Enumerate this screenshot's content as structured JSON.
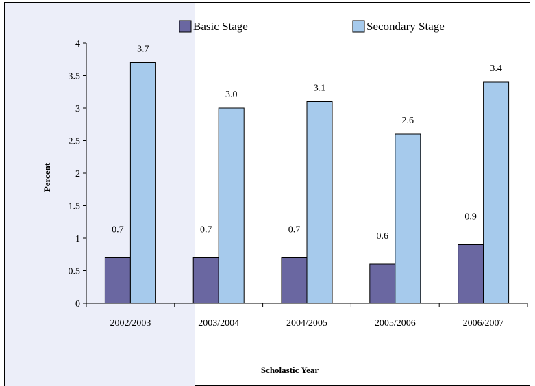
{
  "chart_data": {
    "type": "bar",
    "categories": [
      "2002/2003",
      "2003/2004",
      "2004/2005",
      "2005/2006",
      "2006/2007"
    ],
    "series": [
      {
        "name": "Basic Stage",
        "values": [
          0.7,
          0.7,
          0.7,
          0.6,
          0.9
        ],
        "labels": [
          "0.7",
          "0.7",
          "0.7",
          "0.6",
          "0.9"
        ],
        "color": "#6a67a1"
      },
      {
        "name": "Secondary Stage",
        "values": [
          3.7,
          3.0,
          3.1,
          2.6,
          3.4
        ],
        "labels": [
          "3.7",
          "3.0",
          "3.1",
          "2.6",
          "3.4"
        ],
        "color": "#a6caec"
      }
    ],
    "ylim": [
      0,
      4
    ],
    "yticks": [
      "0",
      "0.5",
      "1",
      "1.5",
      "2",
      "2.5",
      "3",
      "3.5",
      "4"
    ],
    "xlabel": "Scholastic Year",
    "ylabel": "Percent",
    "legend_position": "top",
    "grid": false
  }
}
